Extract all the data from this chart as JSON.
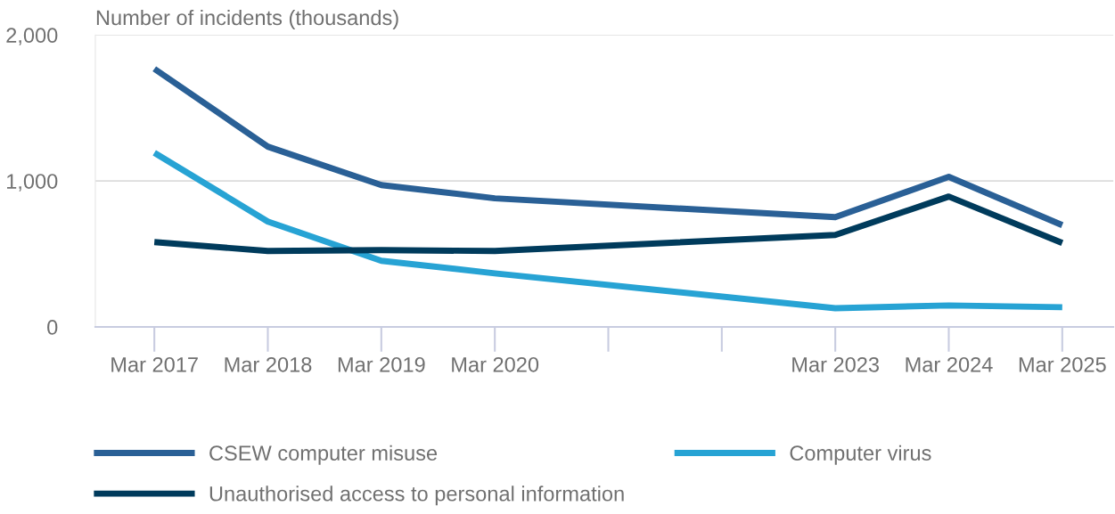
{
  "chart_data": {
    "type": "line",
    "ylabel": "Number of incidents (thousands)",
    "categories": [
      "Mar 2017",
      "Mar 2018",
      "Mar 2019",
      "Mar 2020",
      null,
      null,
      "Mar 2023",
      "Mar 2024",
      "Mar 2025"
    ],
    "ylim": [
      0,
      2000
    ],
    "yticks": [
      0,
      {
        "value": 1000,
        "label": "1,000"
      },
      {
        "value": 2000,
        "label": "2,000"
      }
    ],
    "series": [
      {
        "name": "CSEW computer misuse",
        "color": "#2a6096",
        "values": [
          1768,
          1235,
          972,
          881,
          null,
          null,
          752,
          1028,
          697
        ]
      },
      {
        "name": "Computer virus",
        "color": "#27a3d4",
        "values": [
          1193,
          722,
          453,
          367,
          null,
          null,
          128,
          147,
          135
        ]
      },
      {
        "name": "Unauthorised access to personal information",
        "color": "#003b5c",
        "values": [
          581,
          520,
          526,
          520,
          null,
          null,
          630,
          893,
          575
        ]
      }
    ],
    "grid": "y",
    "legend": "bottom",
    "marker": "none",
    "line_style": "solid"
  }
}
